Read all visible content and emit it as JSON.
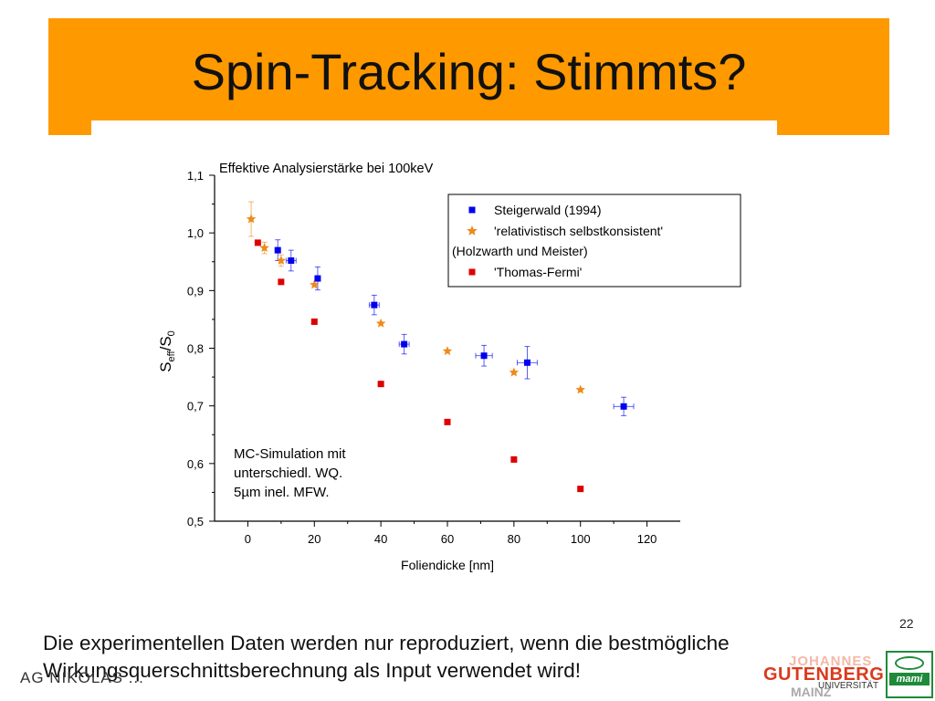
{
  "slide": {
    "title": "Spin-Tracking: Stimmts?",
    "number": "22",
    "caption_line1": "Die experimentellen Daten werden nur reproduziert, wenn die bestmögliche",
    "caption_line2": "Wirkungsquerschnittsberechnung als Input verwendet wird!",
    "footer_left": "AG NIKOLAS ...",
    "logo_jgu": {
      "johannes": "JOHANNES",
      "gutenberg": "GUTENBERG",
      "universitaet": "UNIVERSITÄT",
      "mainz": "MAINZ"
    },
    "logo_mami": "mami",
    "colors": {
      "title_bar": "#ff9900",
      "blue": "#0000ee",
      "orange": "#ee8a1a",
      "red": "#dd0000"
    }
  },
  "chart_data": {
    "type": "scatter",
    "title": "Effektive Analysierstärke bei 100keV",
    "xlabel": "Foliendicke [nm]",
    "ylabel": "S_eff/S_0",
    "xlim": [
      -10,
      130
    ],
    "ylim": [
      0.5,
      1.1
    ],
    "xticks": [
      "0",
      "20",
      "40",
      "60",
      "80",
      "100",
      "120"
    ],
    "yticks": [
      "0,5",
      "0,6",
      "0,7",
      "0,8",
      "0,9",
      "1,0",
      "1,1"
    ],
    "annotation": [
      "MC-Simulation mit",
      "unterschiedl. WQ.",
      "5µm inel. MFW."
    ],
    "legend_position": "top-right",
    "legend": [
      "Steigerwald (1994)",
      "'relativistisch selbstkonsistent'",
      "(Holzwarth und Meister)",
      "'Thomas-Fermi'"
    ],
    "series": [
      {
        "name": "Steigerwald (1994)",
        "marker": "square",
        "color": "#0000ee",
        "points": [
          {
            "x": 9,
            "y": 0.97,
            "yerr": 0.018,
            "xerr": 0
          },
          {
            "x": 13,
            "y": 0.952,
            "yerr": 0.018,
            "xerr": 1.5
          },
          {
            "x": 21,
            "y": 0.921,
            "yerr": 0.02,
            "xerr": 0
          },
          {
            "x": 38,
            "y": 0.875,
            "yerr": 0.017,
            "xerr": 1.5
          },
          {
            "x": 47,
            "y": 0.807,
            "yerr": 0.017,
            "xerr": 1.5
          },
          {
            "x": 71,
            "y": 0.787,
            "yerr": 0.018,
            "xerr": 2.5
          },
          {
            "x": 84,
            "y": 0.775,
            "yerr": 0.028,
            "xerr": 3
          },
          {
            "x": 113,
            "y": 0.699,
            "yerr": 0.016,
            "xerr": 3
          }
        ]
      },
      {
        "name": "'relativistisch selbstkonsistent' (Holzwarth und Meister)",
        "marker": "star",
        "color": "#ee8a1a",
        "points": [
          {
            "x": 1,
            "y": 1.024,
            "yerr": 0.03,
            "xerr": 0
          },
          {
            "x": 5,
            "y": 0.974,
            "yerr": 0.01,
            "xerr": 0
          },
          {
            "x": 10,
            "y": 0.952,
            "yerr": 0.01,
            "xerr": 0
          },
          {
            "x": 20,
            "y": 0.91,
            "yerr": 0,
            "xerr": 0
          },
          {
            "x": 40,
            "y": 0.843,
            "yerr": 0,
            "xerr": 0
          },
          {
            "x": 60,
            "y": 0.795,
            "yerr": 0,
            "xerr": 0
          },
          {
            "x": 80,
            "y": 0.758,
            "yerr": 0,
            "xerr": 0
          },
          {
            "x": 100,
            "y": 0.728,
            "yerr": 0,
            "xerr": 0
          }
        ]
      },
      {
        "name": "'Thomas-Fermi'",
        "marker": "square",
        "color": "#dd0000",
        "points": [
          {
            "x": 3,
            "y": 0.983
          },
          {
            "x": 10,
            "y": 0.915
          },
          {
            "x": 20,
            "y": 0.846
          },
          {
            "x": 40,
            "y": 0.738
          },
          {
            "x": 60,
            "y": 0.672
          },
          {
            "x": 80,
            "y": 0.607
          },
          {
            "x": 100,
            "y": 0.556
          }
        ]
      }
    ]
  }
}
